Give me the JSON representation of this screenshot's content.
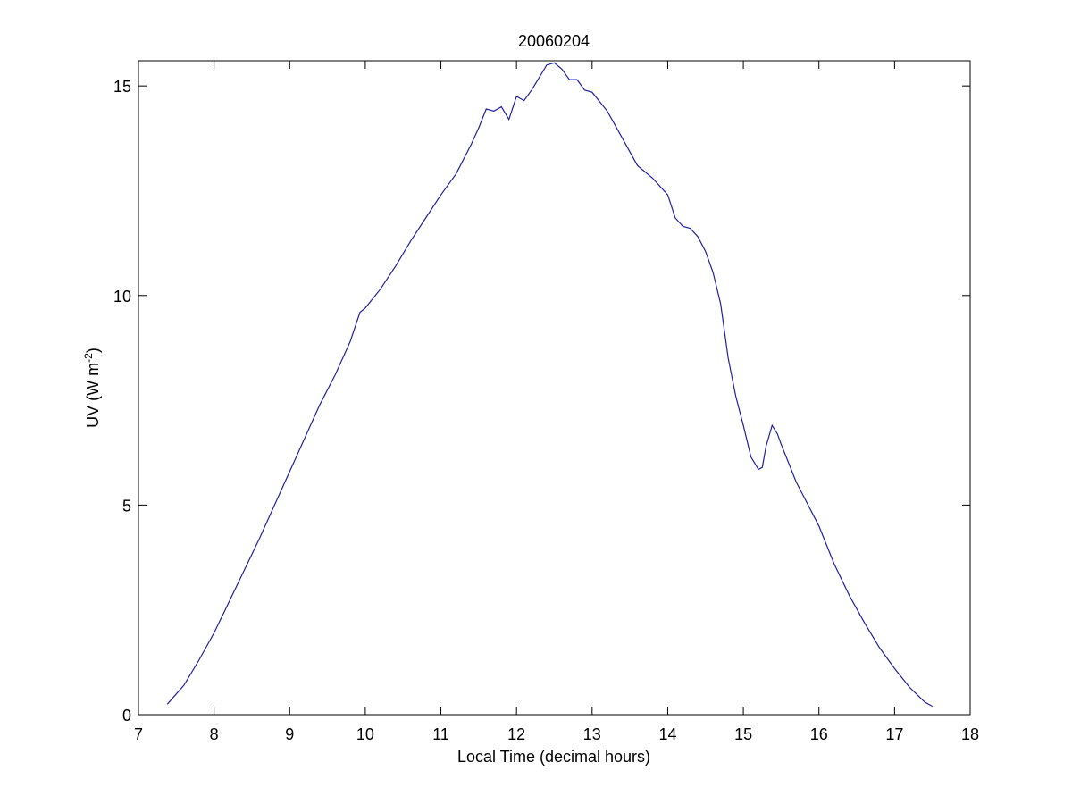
{
  "chart_data": {
    "type": "line",
    "title": "20060204",
    "xlabel": "Local Time (decimal hours)",
    "ylabel": {
      "prefix": "UV (W m",
      "superscript": "-2",
      "suffix": ")"
    },
    "xlim": [
      7,
      18
    ],
    "ylim": [
      0,
      15.6
    ],
    "xticks": [
      7,
      8,
      9,
      10,
      11,
      12,
      13,
      14,
      15,
      16,
      17,
      18
    ],
    "yticks": [
      0,
      5,
      10,
      15
    ],
    "grid": false,
    "line_color": "#1f1fa8",
    "series": [
      {
        "x": [
          7.38,
          7.6,
          7.8,
          8.0,
          8.2,
          8.4,
          8.6,
          8.8,
          9.0,
          9.2,
          9.4,
          9.6,
          9.8,
          9.93,
          10.0,
          10.2,
          10.4,
          10.6,
          10.8,
          11.0,
          11.2,
          11.4,
          11.5,
          11.6,
          11.7,
          11.8,
          11.9,
          12.0,
          12.1,
          12.2,
          12.3,
          12.4,
          12.5,
          12.6,
          12.7,
          12.8,
          12.9,
          13.0,
          13.2,
          13.4,
          13.6,
          13.8,
          14.0,
          14.1,
          14.2,
          14.3,
          14.4,
          14.5,
          14.6,
          14.7,
          14.8,
          14.9,
          15.0,
          15.1,
          15.2,
          15.25,
          15.3,
          15.38,
          15.45,
          15.5,
          15.6,
          15.7,
          15.8,
          16.0,
          16.2,
          16.4,
          16.6,
          16.8,
          17.0,
          17.2,
          17.4,
          17.5
        ],
        "y": [
          0.25,
          0.7,
          1.3,
          1.95,
          2.7,
          3.45,
          4.2,
          5.0,
          5.8,
          6.6,
          7.4,
          8.1,
          8.9,
          9.6,
          9.7,
          10.15,
          10.7,
          11.3,
          11.85,
          12.4,
          12.9,
          13.6,
          14.0,
          14.45,
          14.4,
          14.5,
          14.2,
          14.75,
          14.65,
          14.9,
          15.2,
          15.5,
          15.55,
          15.4,
          15.15,
          15.15,
          14.9,
          14.85,
          14.4,
          13.75,
          13.1,
          12.8,
          12.4,
          11.85,
          11.65,
          11.6,
          11.4,
          11.05,
          10.55,
          9.8,
          8.5,
          7.6,
          6.9,
          6.15,
          5.85,
          5.9,
          6.4,
          6.9,
          6.7,
          6.45,
          6.0,
          5.55,
          5.2,
          4.5,
          3.6,
          2.85,
          2.2,
          1.6,
          1.1,
          0.65,
          0.3,
          0.2
        ]
      }
    ]
  }
}
